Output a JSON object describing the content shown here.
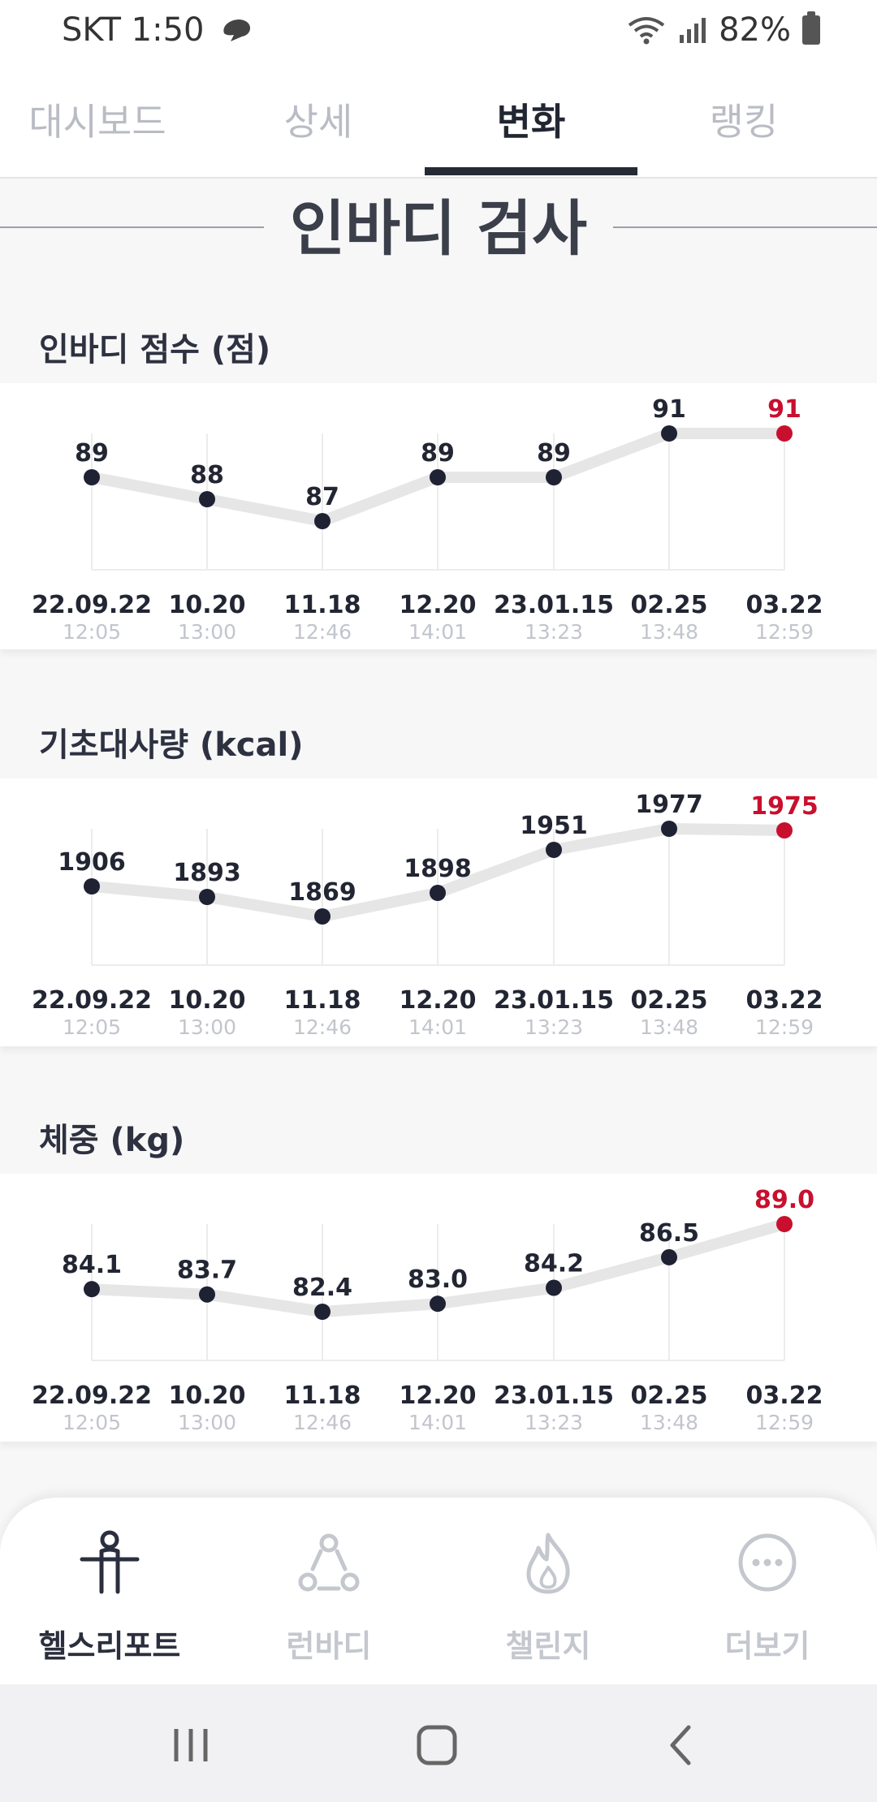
{
  "status_bar": {
    "carrier_time": "SKT 1:50",
    "battery": "82%"
  },
  "tabs": [
    {
      "label": "대시보드",
      "active": false
    },
    {
      "label": "상세",
      "active": false
    },
    {
      "label": "변화",
      "active": true
    },
    {
      "label": "랭킹",
      "active": false
    }
  ],
  "section_title": "인바디 검사",
  "colors": {
    "point": "#1e2233",
    "latest": "#c8102e",
    "line": "#e6e6e6",
    "grid": "#ececec"
  },
  "chart_data": [
    {
      "type": "line",
      "title": "인바디 점수 (점)",
      "categories": [
        "22.09.22",
        "10.20",
        "11.18",
        "12.20",
        "23.01.15",
        "02.25",
        "03.22"
      ],
      "times": [
        "12:05",
        "13:00",
        "12:46",
        "14:01",
        "13:23",
        "13:48",
        "12:59"
      ],
      "values": [
        89,
        88,
        87,
        89,
        89,
        91,
        91
      ],
      "value_labels": [
        "89",
        "88",
        "87",
        "89",
        "89",
        "91",
        "91"
      ],
      "ylim": [
        87,
        91
      ]
    },
    {
      "type": "line",
      "title": "기초대사량 (kcal)",
      "categories": [
        "22.09.22",
        "10.20",
        "11.18",
        "12.20",
        "23.01.15",
        "02.25",
        "03.22"
      ],
      "times": [
        "12:05",
        "13:00",
        "12:46",
        "14:01",
        "13:23",
        "13:48",
        "12:59"
      ],
      "values": [
        1906,
        1893,
        1869,
        1898,
        1951,
        1977,
        1975
      ],
      "value_labels": [
        "1906",
        "1893",
        "1869",
        "1898",
        "1951",
        "1977",
        "1975"
      ],
      "ylim": [
        1869,
        1977
      ]
    },
    {
      "type": "line",
      "title": "체중 (kg)",
      "categories": [
        "22.09.22",
        "10.20",
        "11.18",
        "12.20",
        "23.01.15",
        "02.25",
        "03.22"
      ],
      "times": [
        "12:05",
        "13:00",
        "12:46",
        "14:01",
        "13:23",
        "13:48",
        "12:59"
      ],
      "values": [
        84.1,
        83.7,
        82.4,
        83.0,
        84.2,
        86.5,
        89.0
      ],
      "value_labels": [
        "84.1",
        "83.7",
        "82.4",
        "83.0",
        "84.2",
        "86.5",
        "89.0"
      ],
      "ylim": [
        82.4,
        89.0
      ]
    }
  ],
  "bottom_nav": [
    {
      "label": "헬스리포트",
      "icon": "person-icon",
      "active": true
    },
    {
      "label": "런바디",
      "icon": "run-body-icon",
      "active": false
    },
    {
      "label": "챌린지",
      "icon": "flame-icon",
      "active": false
    },
    {
      "label": "더보기",
      "icon": "more-icon",
      "active": false
    }
  ],
  "system_nav": [
    "recent-apps-icon",
    "home-icon",
    "back-icon"
  ]
}
